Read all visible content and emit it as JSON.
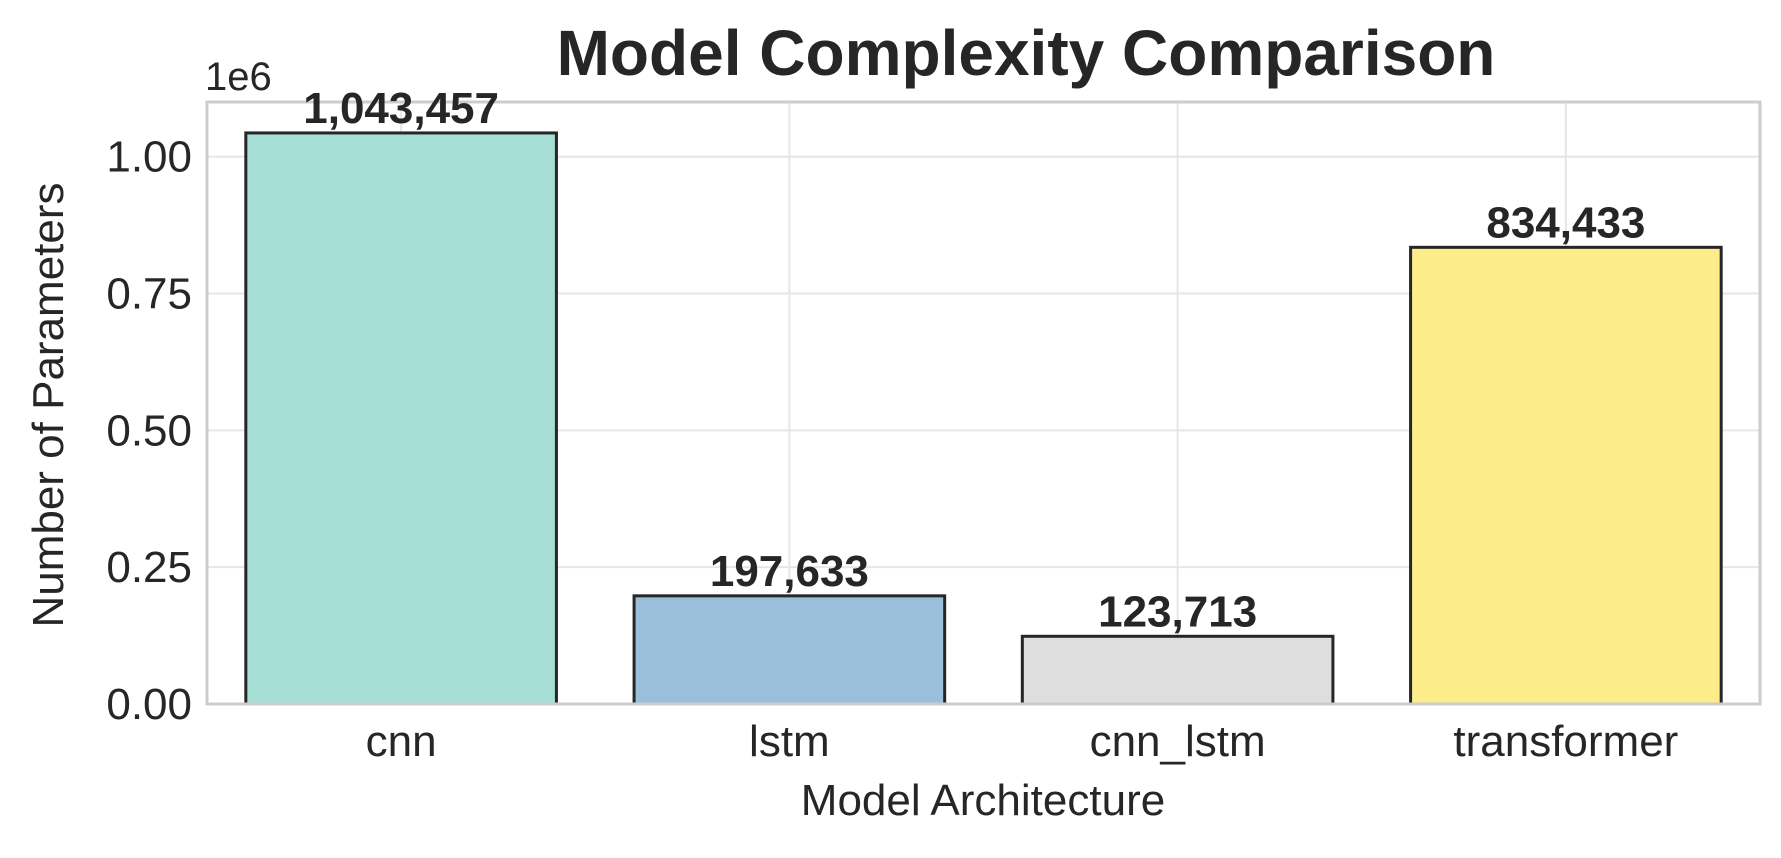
{
  "chart_data": {
    "type": "bar",
    "title": "Model Complexity Comparison",
    "xlabel": "Model Architecture",
    "ylabel": "Number of Parameters",
    "scale_offset_label": "1e6",
    "categories": [
      "cnn",
      "lstm",
      "cnn_lstm",
      "transformer"
    ],
    "values": [
      1043457,
      197633,
      123713,
      834433
    ],
    "value_labels": [
      "1,043,457",
      "197,633",
      "123,713",
      "834,433"
    ],
    "bar_colors": [
      "#a6ddd4",
      "#9abfda",
      "#dedede",
      "#fded8a"
    ],
    "ylim": [
      0,
      1100000
    ],
    "yticks": [
      0,
      250000,
      500000,
      750000,
      1000000
    ],
    "ytick_labels": [
      "0.00",
      "0.25",
      "0.50",
      "0.75",
      "1.00"
    ],
    "grid": true
  }
}
